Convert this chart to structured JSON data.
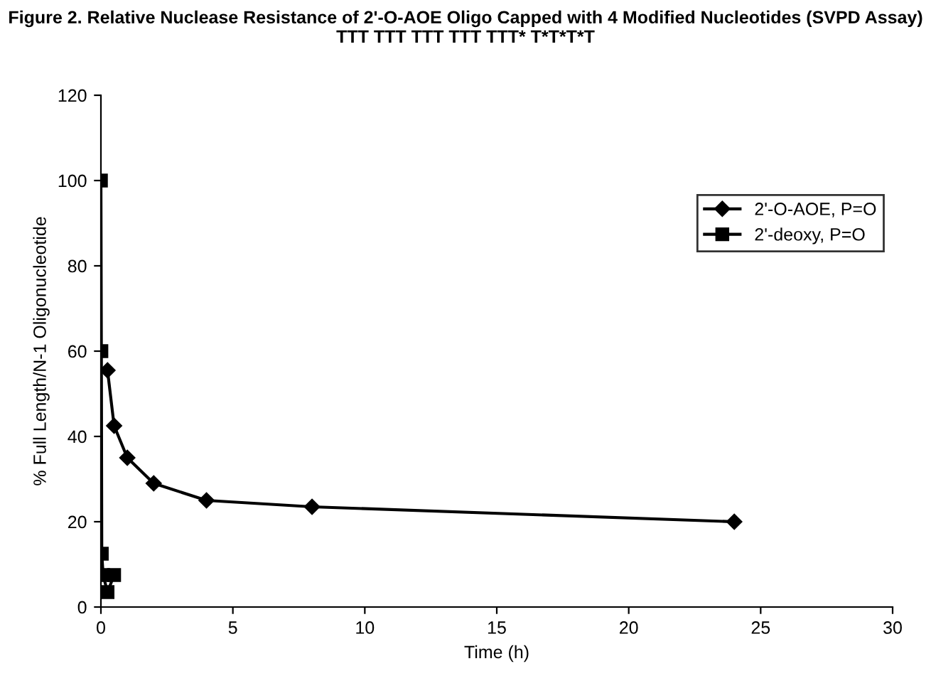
{
  "chart_data": {
    "type": "line",
    "title": "Figure 2. Relative Nuclease Resistance of 2'-O-AOE Oligo Capped with 4 Modified Nucleotides (SVPD Assay) TTT TTT TTT TTT TTT* T*T*T*T",
    "xlabel": "Time (h)",
    "ylabel": "% Full Length/N-1 Oligonucleotide",
    "series": [
      {
        "name": "2'-O-AOE, P=O",
        "color": "#000000",
        "marker": "diamond",
        "x": [
          0.25,
          0.5,
          1,
          2,
          4,
          8,
          24
        ],
        "values": [
          55.5,
          42.5,
          35,
          29,
          25,
          23.5,
          20
        ]
      },
      {
        "name": "2'-deoxy, P=O",
        "color": "#000000",
        "marker": "square",
        "x": [
          0,
          0.017,
          0.033,
          0.083,
          0.25,
          0.5
        ],
        "values": [
          100,
          60,
          12.5,
          7.5,
          3.5,
          7.5
        ]
      }
    ],
    "xlim": [
      0,
      30
    ],
    "xticks": [
      0,
      5,
      10,
      15,
      20,
      25,
      30
    ],
    "ylim": [
      0,
      120
    ],
    "yticks": [
      0,
      20,
      40,
      60,
      80,
      100,
      120
    ],
    "grid": false,
    "legend": "right",
    "line_style": "solid"
  }
}
